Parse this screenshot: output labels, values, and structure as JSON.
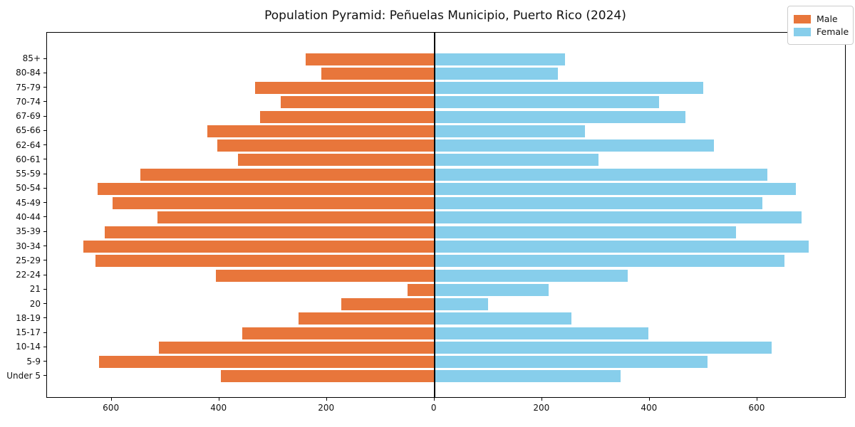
{
  "title": "Population Pyramid: Peñuelas Municipio, Puerto Rico (2024)",
  "legend": {
    "male_label": "Male",
    "female_label": "Female"
  },
  "colors": {
    "male": "#E8763B",
    "female": "#87CEEB",
    "axis": "#000000",
    "legend_border": "#cccccc",
    "text": "#111111"
  },
  "chart_data": {
    "type": "bar",
    "orientation": "horizontal-pyramid",
    "title": "Population Pyramid: Peñuelas Municipio, Puerto Rico (2024)",
    "xlabel": "",
    "ylabel": "",
    "grid": false,
    "legend_position": "upper right",
    "categories_top_to_bottom": [
      "85+",
      "80-84",
      "75-79",
      "70-74",
      "67-69",
      "65-66",
      "62-64",
      "60-61",
      "55-59",
      "50-54",
      "45-49",
      "40-44",
      "35-39",
      "30-34",
      "25-29",
      "22-24",
      "21",
      "20",
      "18-19",
      "15-17",
      "10-14",
      "5-9",
      "Under 5"
    ],
    "series": [
      {
        "name": "Male",
        "side": "left",
        "color": "#E8763B",
        "values": [
          240,
          210,
          333,
          286,
          324,
          422,
          403,
          365,
          546,
          626,
          598,
          515,
          613,
          653,
          630,
          406,
          50,
          173,
          252,
          357,
          512,
          623,
          397
        ]
      },
      {
        "name": "Female",
        "side": "right",
        "color": "#87CEEB",
        "values": [
          242,
          228,
          498,
          416,
          465,
          278,
          518,
          304,
          617,
          670,
          608,
          681,
          560,
          695,
          650,
          358,
          211,
          98,
          254,
          396,
          626,
          506,
          345
        ]
      }
    ],
    "x_tick_values": [
      -600,
      -400,
      -200,
      0,
      200,
      400,
      600
    ],
    "x_tick_labels": [
      "600",
      "400",
      "200",
      "0",
      "200",
      "400",
      "600"
    ],
    "xlim_left_extent": 720,
    "xlim_right_extent": 763
  }
}
